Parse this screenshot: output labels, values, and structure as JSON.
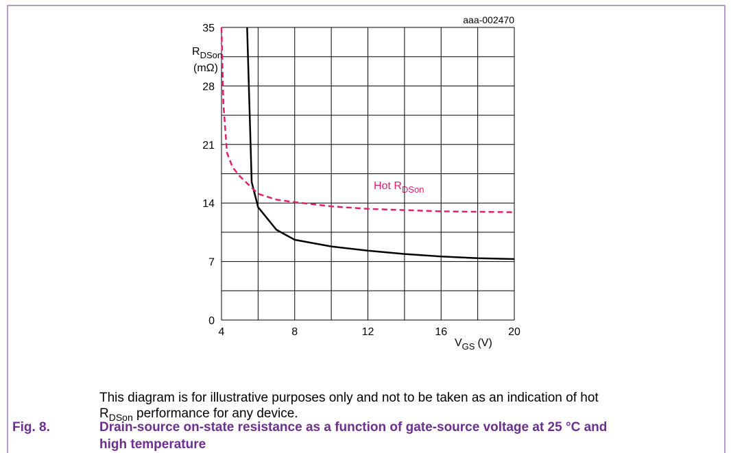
{
  "chart_data": {
    "type": "line",
    "figure_id": "aaa-002470",
    "ylabel": {
      "main": "R",
      "sub": "DSon",
      "unit": "(mΩ)"
    },
    "xlabel": {
      "main": "V",
      "sub": "GS",
      "unit": "(V)"
    },
    "xlim": [
      4,
      20
    ],
    "ylim": [
      0,
      35
    ],
    "xticks": [
      4,
      8,
      12,
      16,
      20
    ],
    "yticks": [
      0,
      7,
      14,
      21,
      28,
      35
    ],
    "x_grid": [
      4,
      6,
      8,
      10,
      12,
      14,
      16,
      18,
      20
    ],
    "y_grid": [
      0,
      3.5,
      7,
      10.5,
      14,
      17.5,
      21,
      24.5,
      28,
      31.5,
      35
    ],
    "grid": true,
    "series": [
      {
        "color": "#000000",
        "dashed": false,
        "x": [
          5.4,
          5.65,
          6,
          7,
          8,
          10,
          12,
          14,
          16,
          18,
          20
        ],
        "values": [
          35,
          16.5,
          13.5,
          10.8,
          9.6,
          8.8,
          8.3,
          7.9,
          7.6,
          7.4,
          7.3
        ]
      },
      {
        "name": {
          "main": "Hot R",
          "sub": "DSon"
        },
        "color": "#e0206a",
        "dashed": true,
        "x": [
          4,
          4.1,
          4.3,
          4.6,
          5,
          6,
          7,
          8,
          10,
          12,
          16,
          20
        ],
        "values": [
          35,
          26,
          20,
          18.3,
          17.2,
          15.1,
          14.4,
          14.1,
          13.6,
          13.3,
          13.0,
          12.9
        ]
      }
    ]
  },
  "note": {
    "line1": "This diagram is for illustrative purposes only and not to be taken as an indication of hot",
    "line2_main": "R",
    "line2_sub": "DSon",
    "line2_rest": " performance for any device."
  },
  "caption": {
    "label": "Fig. 8.",
    "line1": "Drain-source on-state resistance as a function of gate-source voltage at 25 °C and",
    "line2": "high temperature"
  }
}
